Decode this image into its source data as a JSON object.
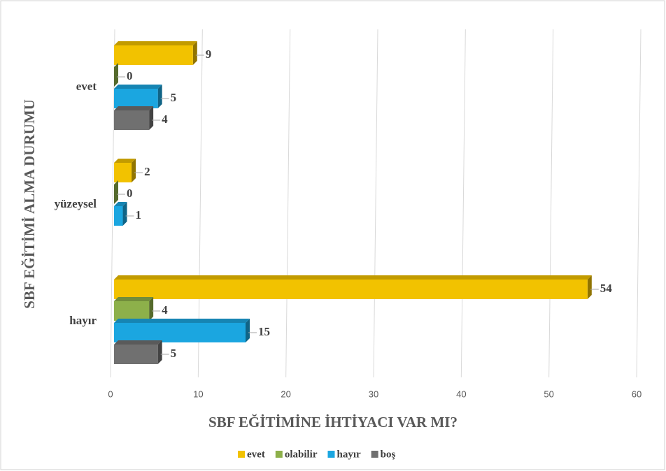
{
  "chart_data": {
    "type": "bar",
    "orientation": "horizontal",
    "x_label": "SBF EĞİTİMİNE  İHTİYACI  VAR MI?",
    "y_label": "SBF EĞİTİMİ  ALMA DURUMU",
    "categories": [
      "evet",
      "yüzeysel",
      "hayır"
    ],
    "series": [
      {
        "name": "evet",
        "color": "#f2c200",
        "values": [
          9,
          2,
          54
        ]
      },
      {
        "name": "olabilir",
        "color": "#8db04a",
        "values": [
          0,
          0,
          4
        ]
      },
      {
        "name": "hayır",
        "color": "#1ba6e0",
        "values": [
          5,
          1,
          15
        ]
      },
      {
        "name": "boş",
        "color": "#707070",
        "values": [
          4,
          null,
          5
        ]
      }
    ],
    "xlim": [
      0,
      60
    ],
    "xticks": [
      0,
      10,
      20,
      30,
      40,
      50,
      60
    ],
    "grid": true,
    "legend": "bottom"
  }
}
